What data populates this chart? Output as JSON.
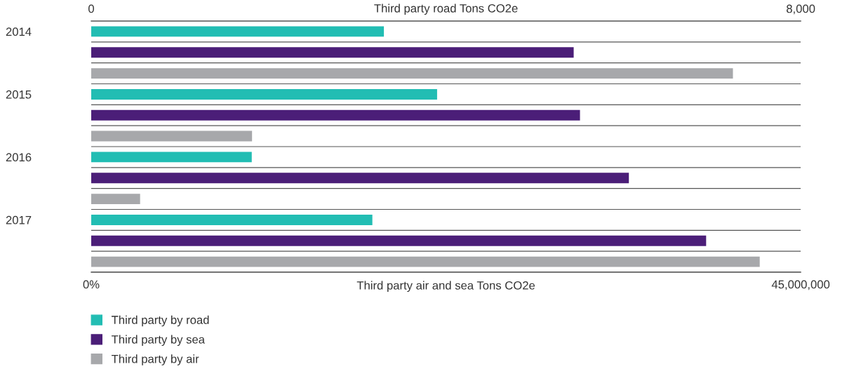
{
  "chart_data": {
    "type": "bar",
    "orientation": "horizontal",
    "categories": [
      "2014",
      "2015",
      "2016",
      "2017"
    ],
    "series": [
      {
        "name": "Third party by road",
        "color": "#22bdb3",
        "axis": "x2",
        "values": [
          3300,
          3900,
          1810,
          3170
        ]
      },
      {
        "name": "Third party by sea",
        "color": "#4b1e78",
        "values": [
          30600000,
          31000000,
          34100000,
          39000000
        ]
      },
      {
        "name": "Third party by air",
        "color": "#a7a8ab",
        "values": [
          40700000,
          10200000,
          3100000,
          42400000
        ]
      }
    ],
    "xlim": [
      0,
      45000000
    ],
    "xticks": [
      {
        "value": 0,
        "label": "0%"
      },
      {
        "value": 45000000,
        "label": "45,000,000"
      }
    ],
    "xlabel": "Third party air and sea Tons CO2e",
    "x2lim": [
      0,
      8000
    ],
    "x2ticks": [
      0,
      {
        "value": 8000,
        "label": "8,000"
      }
    ],
    "x2label": "Third party road Tons CO2e",
    "grid": "y",
    "legend": "bottom left"
  }
}
